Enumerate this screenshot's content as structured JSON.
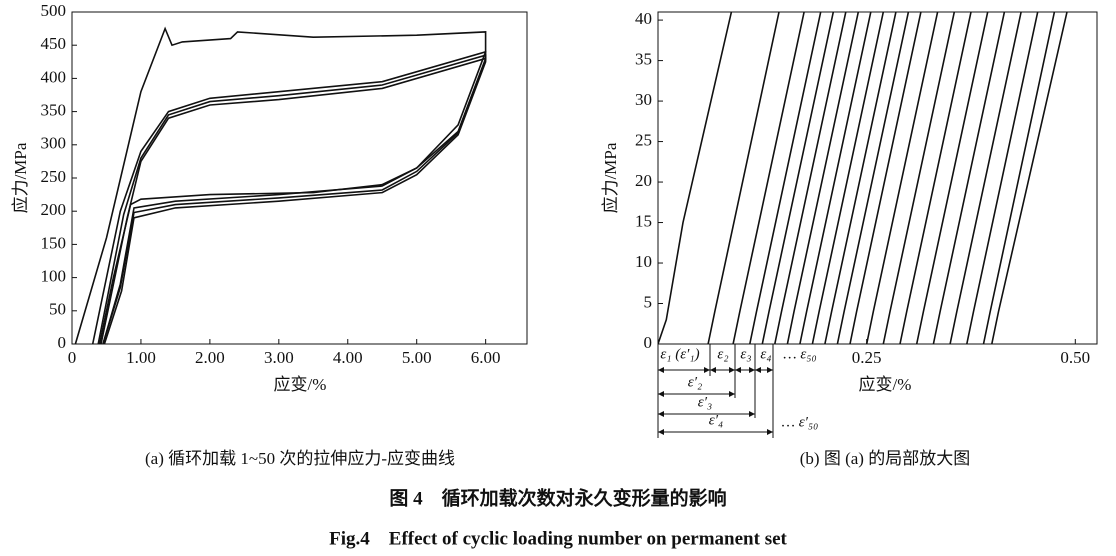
{
  "figure": {
    "title_cn": "图 4　循环加载次数对永久变形量的影响",
    "title_en": "Fig.4　Effect of cyclic loading number on permanent set"
  },
  "chart_data": [
    {
      "type": "line",
      "caption": "(a) 循环加载 1~50 次的拉伸应力-应变曲线",
      "xlabel": "应变/%",
      "ylabel": "应力/MPa",
      "xlim": [
        0,
        6.6
      ],
      "ylim": [
        0,
        500
      ],
      "xticks": [
        0,
        {
          "value": 1,
          "label": "1.00"
        },
        {
          "value": 2,
          "label": "2.00"
        },
        {
          "value": 3,
          "label": "3.00"
        },
        {
          "value": 4,
          "label": "4.00"
        },
        {
          "value": 5,
          "label": "5.00"
        },
        {
          "value": 6,
          "label": "6.00"
        }
      ],
      "yticks": [
        0,
        50,
        100,
        150,
        200,
        250,
        300,
        350,
        400,
        450,
        500
      ],
      "series": [
        {
          "color": "#111111",
          "x": [
            0.05,
            0.5,
            1.0,
            1.35,
            1.45,
            1.6,
            2.3,
            2.4,
            3.5,
            5.0,
            6.0,
            6.0,
            5.6,
            5.0,
            4.5,
            3.5,
            2.0,
            1.0,
            0.85,
            0.6,
            0.4
          ],
          "y": [
            0,
            160,
            380,
            475,
            450,
            455,
            460,
            470,
            462,
            465,
            470,
            440,
            330,
            265,
            240,
            228,
            225,
            218,
            210,
            100,
            0
          ]
        },
        {
          "color": "#111111",
          "x": [
            0.3,
            0.7,
            1.0,
            1.4,
            2.0,
            3.0,
            4.5,
            6.0,
            6.0,
            5.6,
            5.0,
            4.5,
            3.0,
            1.5,
            0.9,
            0.7,
            0.45
          ],
          "y": [
            0,
            200,
            290,
            350,
            370,
            380,
            395,
            440,
            430,
            320,
            265,
            238,
            225,
            215,
            205,
            90,
            0
          ]
        },
        {
          "color": "#111111",
          "x": [
            0.38,
            0.75,
            1.0,
            1.4,
            2.0,
            3.0,
            4.5,
            6.0,
            6.0,
            5.6,
            5.0,
            4.5,
            3.0,
            1.5,
            0.9,
            0.7,
            0.45
          ],
          "y": [
            0,
            195,
            280,
            345,
            365,
            374,
            390,
            435,
            428,
            318,
            260,
            232,
            220,
            210,
            198,
            85,
            0
          ]
        },
        {
          "color": "#111111",
          "x": [
            0.42,
            0.8,
            1.0,
            1.4,
            2.0,
            3.0,
            4.5,
            6.0,
            6.0,
            5.6,
            5.0,
            4.5,
            3.0,
            1.5,
            0.9,
            0.72,
            0.47
          ],
          "y": [
            0,
            190,
            275,
            340,
            360,
            368,
            385,
            430,
            425,
            315,
            255,
            228,
            215,
            205,
            190,
            80,
            0
          ]
        }
      ]
    },
    {
      "type": "line",
      "caption": "(b) 图 (a) 的局部放大图",
      "xlabel": "应变/%",
      "ylabel": "应力/MPa",
      "xlim": [
        0,
        0.526
      ],
      "ylim": [
        0,
        41
      ],
      "xticks": [
        {
          "value": 0.25,
          "label": "0.25"
        },
        {
          "value": 0.5,
          "label": "0.50"
        }
      ],
      "yticks": [
        0,
        5,
        10,
        15,
        20,
        25,
        30,
        35,
        40
      ],
      "annotations": [
        "ε₁ (ε′₁)",
        "ε₂",
        "ε₃",
        "ε₄",
        "… ε₅₀",
        "ε′₂",
        "ε′₃",
        "ε′₄",
        "… ε′₅₀"
      ],
      "series": [
        {
          "color": "#111111",
          "x": [
            0,
            0.01,
            0.03,
            0.088
          ],
          "y": [
            0,
            3,
            15,
            41
          ]
        },
        {
          "color": "#111111",
          "x": [
            0.06,
            0.068,
            0.145
          ],
          "y": [
            0,
            4,
            41
          ]
        },
        {
          "color": "#111111",
          "x": [
            0.09,
            0.098,
            0.175
          ],
          "y": [
            0,
            4,
            41
          ]
        },
        {
          "color": "#111111",
          "x": [
            0.11,
            0.118,
            0.195
          ],
          "y": [
            0,
            4,
            41
          ]
        },
        {
          "color": "#111111",
          "x": [
            0.125,
            0.133,
            0.21
          ],
          "y": [
            0,
            4,
            41
          ]
        },
        {
          "color": "#111111",
          "x": [
            0.14,
            0.148,
            0.225
          ],
          "y": [
            0,
            4,
            41
          ]
        },
        {
          "color": "#111111",
          "x": [
            0.155,
            0.163,
            0.24
          ],
          "y": [
            0,
            4,
            41
          ]
        },
        {
          "color": "#111111",
          "x": [
            0.17,
            0.178,
            0.255
          ],
          "y": [
            0,
            4,
            41
          ]
        },
        {
          "color": "#111111",
          "x": [
            0.185,
            0.193,
            0.27
          ],
          "y": [
            0,
            4,
            41
          ]
        },
        {
          "color": "#111111",
          "x": [
            0.2,
            0.208,
            0.285
          ],
          "y": [
            0,
            4,
            41
          ]
        },
        {
          "color": "#111111",
          "x": [
            0.215,
            0.223,
            0.3
          ],
          "y": [
            0,
            4,
            41
          ]
        },
        {
          "color": "#111111",
          "x": [
            0.23,
            0.238,
            0.315
          ],
          "y": [
            0,
            4,
            41
          ]
        },
        {
          "color": "#111111",
          "x": [
            0.25,
            0.258,
            0.335
          ],
          "y": [
            0,
            4,
            41
          ]
        },
        {
          "color": "#111111",
          "x": [
            0.27,
            0.278,
            0.355
          ],
          "y": [
            0,
            4,
            41
          ]
        },
        {
          "color": "#111111",
          "x": [
            0.29,
            0.298,
            0.375
          ],
          "y": [
            0,
            4,
            41
          ]
        },
        {
          "color": "#111111",
          "x": [
            0.31,
            0.318,
            0.395
          ],
          "y": [
            0,
            4,
            41
          ]
        },
        {
          "color": "#111111",
          "x": [
            0.33,
            0.338,
            0.415
          ],
          "y": [
            0,
            4,
            41
          ]
        },
        {
          "color": "#111111",
          "x": [
            0.35,
            0.358,
            0.435
          ],
          "y": [
            0,
            4,
            41
          ]
        },
        {
          "color": "#111111",
          "x": [
            0.37,
            0.378,
            0.455
          ],
          "y": [
            0,
            4,
            41
          ]
        },
        {
          "color": "#111111",
          "x": [
            0.39,
            0.398,
            0.475
          ],
          "y": [
            0,
            4,
            41
          ]
        },
        {
          "color": "#111111",
          "x": [
            0.4,
            0.408,
            0.49
          ],
          "y": [
            0,
            4,
            41
          ]
        }
      ]
    }
  ]
}
